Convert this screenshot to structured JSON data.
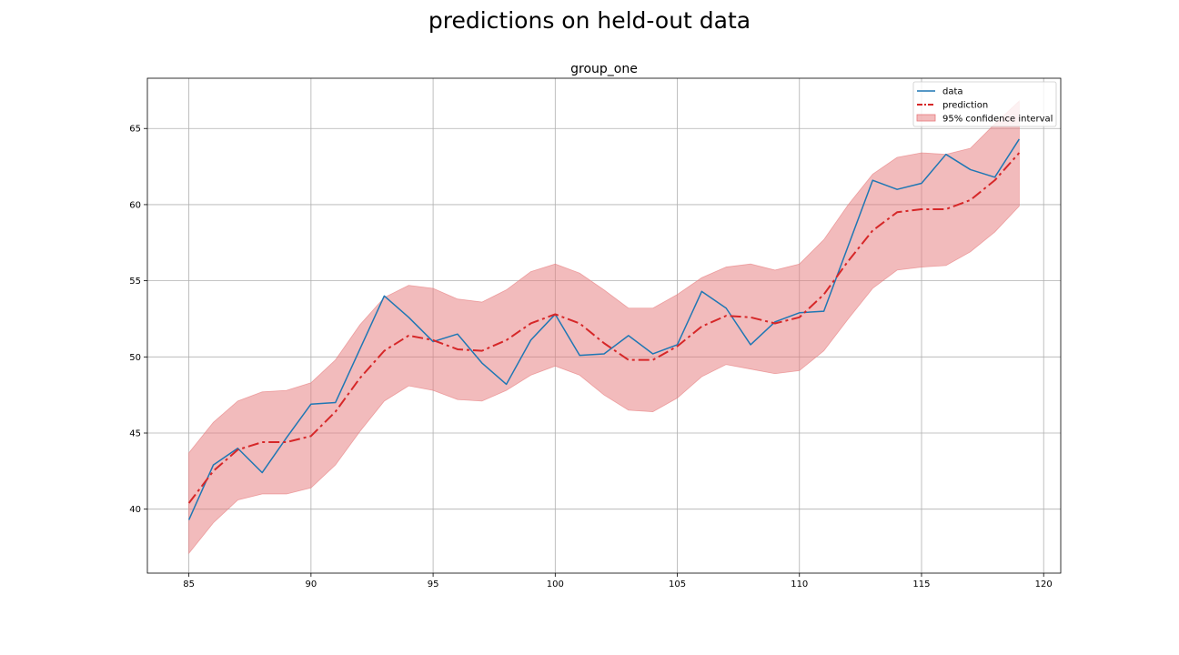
{
  "figure": {
    "suptitle": "predictions on held-out data"
  },
  "chart_data": {
    "type": "line",
    "title": "group_one",
    "xlabel": "",
    "ylabel": "",
    "xlim": [
      83.3,
      120.7
    ],
    "ylim": [
      35.8,
      68.3
    ],
    "xticks": [
      85,
      90,
      95,
      100,
      105,
      110,
      115,
      120
    ],
    "yticks": [
      40,
      45,
      50,
      55,
      60,
      65
    ],
    "grid": true,
    "legend_position": "upper right",
    "x": [
      85,
      86,
      87,
      88,
      89,
      90,
      91,
      92,
      93,
      94,
      95,
      96,
      97,
      98,
      99,
      100,
      101,
      102,
      103,
      104,
      105,
      106,
      107,
      108,
      109,
      110,
      111,
      112,
      113,
      114,
      115,
      116,
      117,
      118,
      119
    ],
    "series": [
      {
        "name": "data",
        "style": "solid",
        "color": "#1f77b4",
        "values": [
          39.3,
          42.9,
          44.0,
          42.4,
          44.7,
          46.9,
          47.0,
          50.5,
          54.0,
          52.6,
          51.0,
          51.5,
          49.6,
          48.2,
          51.1,
          52.8,
          50.1,
          50.2,
          51.4,
          50.2,
          50.8,
          54.3,
          53.2,
          50.8,
          52.3,
          52.9,
          53.0,
          57.3,
          61.6,
          61.0,
          61.4,
          63.3,
          62.3,
          61.8,
          64.3
        ]
      },
      {
        "name": "prediction",
        "style": "dashdot",
        "color": "#d62728",
        "values": [
          40.4,
          42.5,
          43.9,
          44.4,
          44.4,
          44.8,
          46.4,
          48.6,
          50.4,
          51.4,
          51.1,
          50.5,
          50.4,
          51.1,
          52.2,
          52.8,
          52.2,
          50.9,
          49.8,
          49.8,
          50.7,
          52.0,
          52.7,
          52.6,
          52.2,
          52.6,
          54.1,
          56.3,
          58.3,
          59.5,
          59.7,
          59.7,
          60.3,
          61.6,
          63.4
        ]
      }
    ],
    "confidence_interval": {
      "name": "95% confidence interval",
      "color": "#e6787a",
      "lower": [
        37.1,
        39.1,
        40.6,
        41.0,
        41.0,
        41.4,
        42.9,
        45.1,
        47.1,
        48.1,
        47.8,
        47.2,
        47.1,
        47.8,
        48.8,
        49.4,
        48.8,
        47.5,
        46.5,
        46.4,
        47.3,
        48.7,
        49.5,
        49.2,
        48.9,
        49.1,
        50.4,
        52.5,
        54.5,
        55.7,
        55.9,
        56.0,
        56.9,
        58.2,
        59.9
      ],
      "upper": [
        43.7,
        45.7,
        47.1,
        47.7,
        47.8,
        48.3,
        49.8,
        52.1,
        53.9,
        54.7,
        54.5,
        53.8,
        53.6,
        54.4,
        55.6,
        56.1,
        55.5,
        54.4,
        53.2,
        53.2,
        54.1,
        55.2,
        55.9,
        56.1,
        55.7,
        56.1,
        57.7,
        60.0,
        62.0,
        63.1,
        63.4,
        63.3,
        63.7,
        65.3,
        66.8
      ]
    }
  }
}
